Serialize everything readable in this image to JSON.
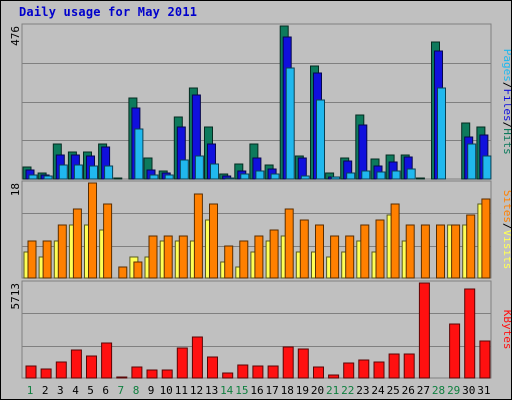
{
  "title": "Daily usage for May 2011",
  "colors": {
    "hits": "#0d7a5c",
    "files": "#1010dd",
    "pages": "#20b8ee",
    "visits": "#ffff55",
    "sites": "#ff8000",
    "kbytes": "#ff1010",
    "weekend_day_label": "#108040",
    "weekday_label": "#000000"
  },
  "legend": {
    "panel1": [
      {
        "text": "Pages",
        "color": "#20b8ee"
      },
      {
        "text": "/",
        "color": "#000000"
      },
      {
        "text": "Files",
        "color": "#1010dd"
      },
      {
        "text": "/",
        "color": "#000000"
      },
      {
        "text": "Hits",
        "color": "#0d7a5c"
      }
    ],
    "panel2": [
      {
        "text": "Sites",
        "color": "#ff8000"
      },
      {
        "text": "/",
        "color": "#000000"
      },
      {
        "text": "Visits",
        "color": "#ffff55"
      }
    ],
    "panel3": [
      {
        "text": "KBytes",
        "color": "#ff1010"
      }
    ]
  },
  "chart_data": {
    "type": "bar",
    "title": "Daily usage for May 2011",
    "categories": [
      "1",
      "2",
      "3",
      "4",
      "5",
      "6",
      "7",
      "8",
      "9",
      "10",
      "11",
      "12",
      "13",
      "14",
      "15",
      "16",
      "17",
      "18",
      "19",
      "20",
      "21",
      "22",
      "23",
      "24",
      "25",
      "26",
      "27",
      "28",
      "29",
      "30",
      "31"
    ],
    "weekend_days": [
      "1",
      "7",
      "8",
      "14",
      "15",
      "21",
      "22",
      "28",
      "29"
    ],
    "panels": [
      {
        "id": "hits-files-pages",
        "ymax": 476,
        "ymax_label": "476",
        "series": [
          {
            "name": "Hits",
            "values": [
              38,
              18,
              108,
              84,
              84,
              108,
              4,
              252,
              66,
              24,
              192,
              284,
              162,
              14,
              48,
              108,
              42,
              476,
              72,
              352,
              18,
              66,
              198,
              62,
              76,
              76,
              4,
              426,
              0,
              174,
              162
            ]
          },
          {
            "name": "Files",
            "values": [
              28,
              13,
              76,
              74,
              70,
              100,
              0,
              222,
              28,
              18,
              162,
              260,
              108,
              8,
              24,
              66,
              30,
              442,
              64,
              330,
              6,
              56,
              168,
              40,
              52,
              68,
              0,
              398,
              0,
              132,
              136
            ]
          },
          {
            "name": "Pages",
            "values": [
              12,
              8,
              44,
              44,
              40,
              40,
              0,
              156,
              12,
              12,
              58,
              72,
              48,
              4,
              14,
              24,
              16,
              346,
              10,
              246,
              6,
              20,
              24,
              22,
              24,
              32,
              0,
              284,
              0,
              108,
              70
            ]
          }
        ]
      },
      {
        "id": "sites-visits",
        "ymax": 18,
        "ymax_label": "18",
        "series": [
          {
            "name": "Visits",
            "values": [
              5,
              4,
              7,
              10,
              10,
              9,
              0,
              4,
              4,
              7,
              7,
              7,
              11,
              3,
              2,
              5,
              7,
              8,
              5,
              5,
              4,
              5,
              7,
              5,
              12,
              7,
              0,
              0,
              10,
              10,
              14
            ]
          },
          {
            "name": "Sites",
            "values": [
              7,
              7,
              10,
              13,
              18,
              14,
              2,
              3,
              8,
              8,
              8,
              16,
              14,
              6,
              7,
              8,
              9,
              13,
              11,
              10,
              8,
              8,
              10,
              11,
              14,
              10,
              10,
              10,
              10,
              12,
              15
            ]
          }
        ]
      },
      {
        "id": "kbytes",
        "ymax": 5713,
        "ymax_label": "5713",
        "series": [
          {
            "name": "KBytes",
            "values": [
              700,
              560,
              990,
              1690,
              1310,
              2080,
              40,
              680,
              460,
              460,
              1780,
              2470,
              1270,
              330,
              760,
              750,
              720,
              1870,
              1760,
              680,
              190,
              920,
              1060,
              990,
              1460,
              1440,
              5713,
              0,
              3240,
              5380,
              2210
            ]
          }
        ]
      }
    ]
  }
}
